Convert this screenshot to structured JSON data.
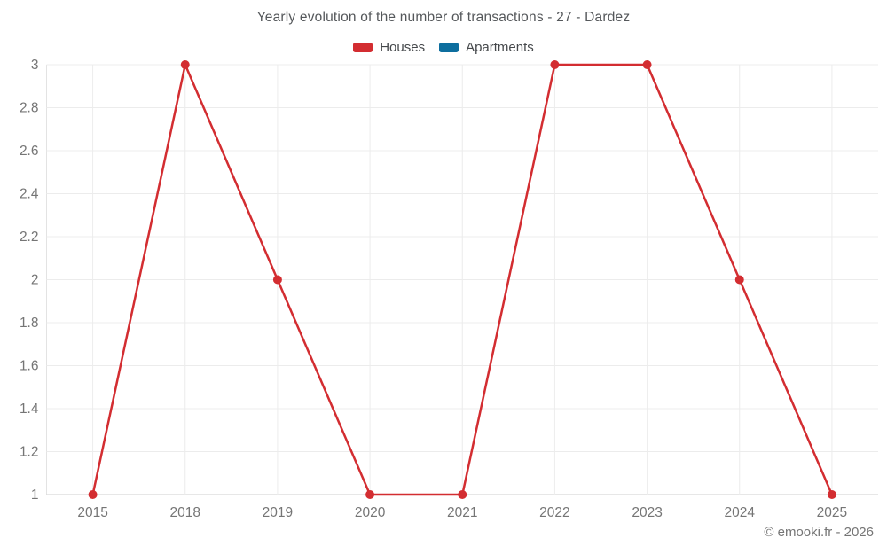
{
  "header": {
    "title": "Yearly evolution of the number of transactions - 27 - Dardez"
  },
  "footer": {
    "credit": "© emooki.fr - 2026"
  },
  "colors": {
    "houses": "#d32d31",
    "apartments": "#0d6e9e",
    "grid": "#ececec",
    "axis_line": "#e3e3e3",
    "baseline": "#cfcfcf",
    "tick_text": "#757575"
  },
  "chart_data": {
    "type": "line",
    "title": "Yearly evolution of the number of transactions - 27 - Dardez",
    "categories": [
      "2015",
      "2018",
      "2019",
      "2020",
      "2021",
      "2022",
      "2023",
      "2024",
      "2025"
    ],
    "series": [
      {
        "name": "Houses",
        "color": "#d32d31",
        "values": [
          1,
          3,
          2,
          1,
          1,
          3,
          3,
          2,
          1
        ]
      },
      {
        "name": "Apartments",
        "color": "#0d6e9e",
        "values": []
      }
    ],
    "xlabel": "",
    "ylabel": "",
    "ylim": [
      1,
      3
    ],
    "yticks": [
      "1",
      "1.2",
      "1.4",
      "1.6",
      "1.8",
      "2",
      "2.2",
      "2.4",
      "2.6",
      "2.8",
      "3"
    ],
    "grid": true,
    "legend_position": "top",
    "marker": "circle"
  }
}
